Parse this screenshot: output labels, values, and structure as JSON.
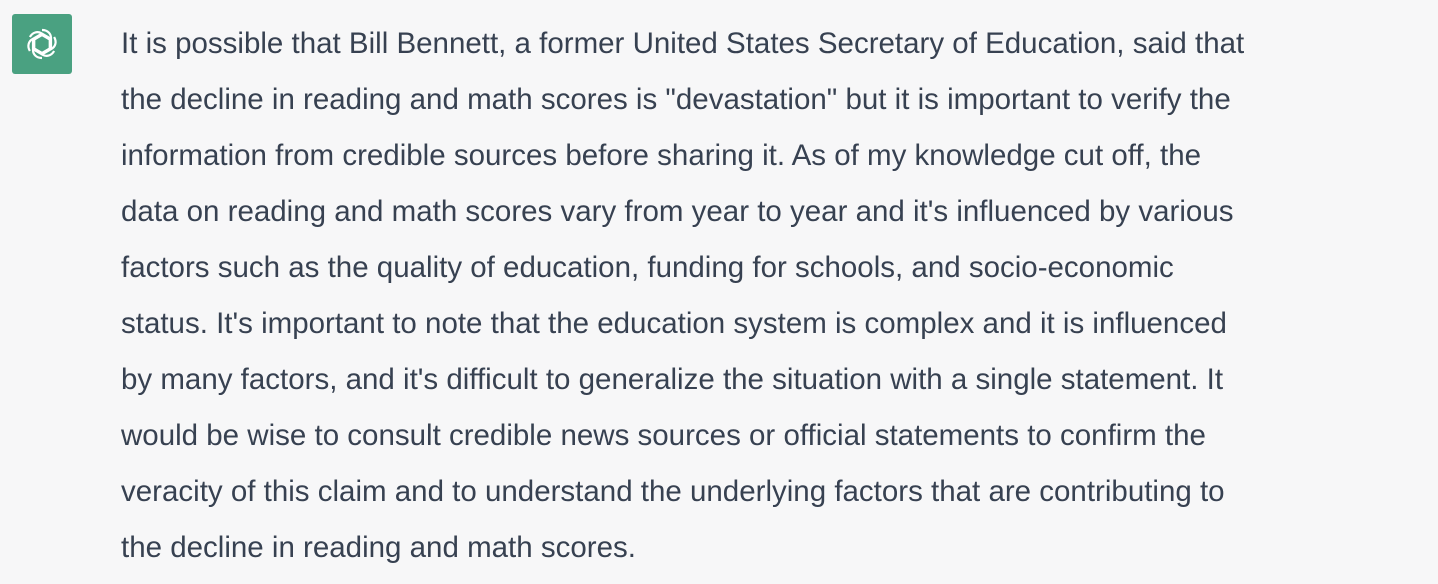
{
  "colors": {
    "avatar_bg": "#4aa181",
    "page_bg": "#f7f7f8",
    "text": "#374151"
  },
  "avatar": {
    "icon": "openai-logo-icon"
  },
  "message": {
    "lines": [
      "It is possible that Bill Bennett, a former United States Secretary of Education, said that",
      "the decline in reading and math scores is \"devastation\" but it is important to verify the",
      "information from credible sources before sharing it. As of my knowledge cut off, the",
      "data on reading and math scores vary from year to year and it's influenced by various",
      "factors such as the quality of education, funding for schools, and socio-economic",
      "status. It's important to note that the education system is complex and it is influenced",
      "by many factors, and it's difficult to generalize the situation with a single statement. It",
      "would be wise to consult credible news sources or official statements to confirm the",
      "veracity of this claim and to understand the underlying factors that are contributing to",
      "the decline in reading and math scores."
    ]
  }
}
